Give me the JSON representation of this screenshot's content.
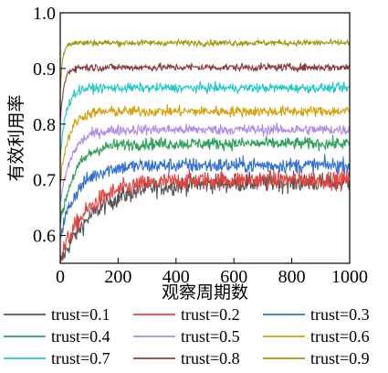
{
  "chart_data": {
    "type": "line",
    "xlabel": "观察周期数",
    "ylabel": "有效利用率",
    "xlim": [
      0,
      1000
    ],
    "ylim": [
      0.55,
      1.0
    ],
    "x_ticks": [
      "0",
      "200",
      "400",
      "600",
      "800",
      "1000"
    ],
    "y_ticks": [
      "0.6",
      "0.7",
      "0.8",
      "0.9",
      "1.0"
    ],
    "grid": false,
    "legend_position": "bottom",
    "series": [
      {
        "name": "trust=0.1",
        "color": "#555555",
        "start": 0.55,
        "plateau": 0.695,
        "noise": 0.012,
        "tau": 120
      },
      {
        "name": "trust=0.2",
        "color": "#e8413c",
        "start": 0.56,
        "plateau": 0.7,
        "noise": 0.012,
        "tau": 100
      },
      {
        "name": "trust=0.3",
        "color": "#2f6fd6",
        "start": 0.6,
        "plateau": 0.726,
        "noise": 0.01,
        "tau": 60
      },
      {
        "name": "trust=0.4",
        "color": "#2ca05a",
        "start": 0.62,
        "plateau": 0.765,
        "noise": 0.008,
        "tau": 50
      },
      {
        "name": "trust=0.5",
        "color": "#b48ae8",
        "start": 0.66,
        "plateau": 0.79,
        "noise": 0.007,
        "tau": 40
      },
      {
        "name": "trust=0.6",
        "color": "#d4a20a",
        "start": 0.7,
        "plateau": 0.823,
        "noise": 0.007,
        "tau": 30
      },
      {
        "name": "trust=0.7",
        "color": "#22c9c9",
        "start": 0.74,
        "plateau": 0.865,
        "noise": 0.006,
        "tau": 20
      },
      {
        "name": "trust=0.8",
        "color": "#8b3a3a",
        "start": 0.8,
        "plateau": 0.902,
        "noise": 0.005,
        "tau": 12
      },
      {
        "name": "trust=0.9",
        "color": "#a09a10",
        "start": 0.86,
        "plateau": 0.946,
        "noise": 0.004,
        "tau": 8
      }
    ]
  }
}
